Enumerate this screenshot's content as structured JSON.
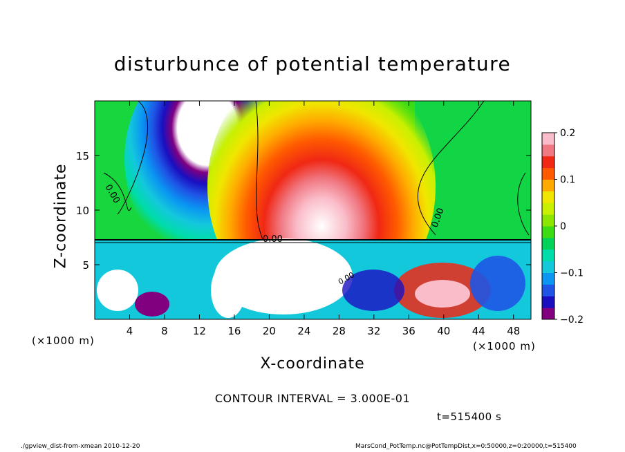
{
  "title": "disturbunce of potential temperature",
  "xlabel": "X-coordinate",
  "ylabel": "Z-coordinate",
  "x_unit_left": "(×1000 m)",
  "x_unit_right": "(×1000 m)",
  "contour_interval": "CONTOUR INTERVAL = 3.000E-01",
  "timestamp": "t=515400 s",
  "footer_left": "./gpview_dist-from-xmean  2010-12-20",
  "footer_right": "MarsCond_PotTemp.nc@PotTempDist,x=0:50000,z=0:20000,t=515400",
  "contour_labels": [
    "0.00",
    "0.00",
    "0.00",
    "0.00"
  ],
  "chart_data": {
    "type": "heatmap",
    "title": "disturbunce of potential temperature",
    "xlabel": "X-coordinate",
    "ylabel": "Z-coordinate",
    "xlim": [
      0,
      50
    ],
    "ylim": [
      0,
      20
    ],
    "x_ticks": [
      "4",
      "8",
      "12",
      "16",
      "20",
      "24",
      "28",
      "32",
      "36",
      "40",
      "44",
      "48"
    ],
    "y_ticks": [
      "5",
      "10",
      "15"
    ],
    "colorbar": {
      "range": [
        -0.2,
        0.2
      ],
      "tick_labels": [
        "0.2",
        "0.1",
        "0",
        "−0.1",
        "−0.2"
      ],
      "colors": [
        "#800080",
        "#1a0fc0",
        "#1e55e6",
        "#0a96f2",
        "#14c8dc",
        "#00dcaa",
        "#00d25a",
        "#3cdc14",
        "#8ce600",
        "#c8f000",
        "#f0e600",
        "#ffaa00",
        "#ff5a00",
        "#f02814",
        "#f07882",
        "#fabcc8"
      ],
      "over_color": "#ffffff",
      "under_color": "#ffffff"
    },
    "features": [
      {
        "name": "cold plume",
        "x": 11.5,
        "z_top": 17.5,
        "value": -0.2
      },
      {
        "name": "warm plume",
        "x": 26,
        "z_top": 19.5,
        "value": 0.2
      },
      {
        "name": "turbulent layer",
        "z_top": 7.3
      }
    ]
  }
}
